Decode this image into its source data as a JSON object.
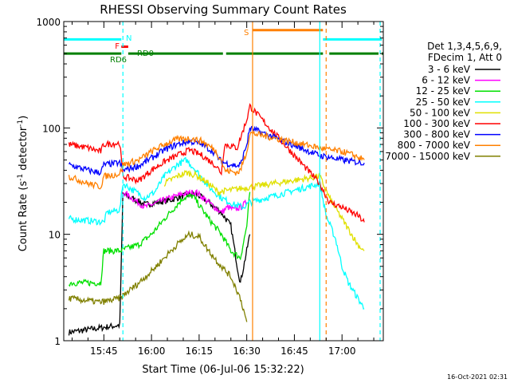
{
  "chart_data": {
    "type": "line",
    "title": "RHESSI Observing Summary Count Rates",
    "xlabel": "Start Time (06-Jul-06 15:32:22)",
    "ylabel": "Count Rate (s",
    "ylabel_exp1": "-1",
    "ylabel_mid": " detector",
    "ylabel_exp2": "-1",
    "ylabel_end": ")",
    "yscale": "log",
    "ylim": [
      1,
      1000
    ],
    "xlim": [
      "15:32:22",
      "17:13:00"
    ],
    "x_ticks": [
      "15:45",
      "16:00",
      "16:15",
      "16:30",
      "16:45",
      "17:00"
    ],
    "y_ticks": [
      "1",
      "10",
      "100",
      "1000"
    ],
    "legend_position": "right",
    "legend_header": [
      "Det 1,3,4,5,6,9,",
      "FDecim 1, Att 0"
    ],
    "footer_timestamp": "16-Oct-2021 02:31",
    "series": [
      {
        "name": "3 - 6 keV",
        "color": "#000000",
        "x": [
          "15:34",
          "15:50",
          "15:51",
          "15:58",
          "16:02",
          "16:06",
          "16:10",
          "16:14",
          "16:18",
          "16:22",
          "16:25",
          "16:27",
          "16:28",
          "16:31"
        ],
        "y": [
          1.2,
          1.4,
          24,
          19,
          20,
          21,
          23,
          24,
          20,
          16,
          12,
          5,
          3.5,
          10
        ]
      },
      {
        "name": "6 - 12 keV",
        "color": "#ff00ff",
        "x": [
          "15:51",
          "15:58",
          "16:02",
          "16:06",
          "16:10",
          "16:14",
          "16:18",
          "16:22",
          "16:24",
          "16:26",
          "16:28",
          "16:30"
        ],
        "y": [
          25,
          18,
          20,
          22,
          24,
          25,
          20,
          16,
          18,
          17,
          18,
          20
        ]
      },
      {
        "name": "12 - 25 keV",
        "color": "#00e000",
        "x": [
          "15:34",
          "15:44",
          "15:45",
          "15:50",
          "15:56",
          "16:00",
          "16:05",
          "16:10",
          "16:13",
          "16:18",
          "16:22",
          "16:25",
          "16:28",
          "16:30",
          "16:31"
        ],
        "y": [
          3.5,
          3.5,
          7,
          7,
          8,
          10,
          15,
          22,
          23,
          14,
          10,
          7,
          6,
          12,
          25
        ]
      },
      {
        "name": "25 - 50 keV",
        "color": "#00ffff",
        "x": [
          "15:34",
          "15:45",
          "15:46",
          "15:50",
          "15:51",
          "15:58",
          "16:01",
          "16:04",
          "16:08",
          "16:11",
          "16:14",
          "16:18",
          "16:22",
          "16:26",
          "16:29",
          "16:31",
          "16:53",
          "16:55",
          "16:58",
          "17:00",
          "17:02",
          "17:05",
          "17:07"
        ],
        "y": [
          14,
          13,
          16,
          17,
          30,
          22,
          25,
          35,
          45,
          50,
          40,
          28,
          22,
          19,
          18,
          20,
          30,
          15,
          9,
          5,
          3.5,
          2.5,
          2
        ]
      },
      {
        "name": "50 - 100 keV",
        "color": "#e0e000",
        "x": [
          "16:04",
          "16:08",
          "16:11",
          "16:14",
          "16:18",
          "16:21",
          "16:53",
          "16:56",
          "17:00",
          "17:03",
          "17:05",
          "17:07"
        ],
        "y": [
          30,
          35,
          38,
          36,
          30,
          25,
          35,
          22,
          14,
          10,
          8,
          7
        ]
      },
      {
        "name": "100 - 300 keV",
        "color": "#ff0000",
        "x": [
          "15:34",
          "15:40",
          "15:44",
          "15:45",
          "15:50",
          "15:51",
          "15:56",
          "16:00",
          "16:04",
          "16:08",
          "16:12",
          "16:16",
          "16:20",
          "16:22",
          "16:23",
          "16:27",
          "16:28",
          "16:30",
          "16:31",
          "16:53",
          "16:56",
          "17:00",
          "17:03",
          "17:05",
          "17:07"
        ],
        "y": [
          70,
          65,
          60,
          70,
          72,
          35,
          32,
          40,
          48,
          55,
          62,
          55,
          45,
          38,
          70,
          65,
          80,
          120,
          160,
          30,
          20,
          18,
          16,
          15,
          13
        ]
      },
      {
        "name": "300 - 800 keV",
        "color": "#0000ff",
        "x": [
          "15:34",
          "15:40",
          "15:44",
          "15:45",
          "15:50",
          "15:51",
          "15:56",
          "16:00",
          "16:04",
          "16:08",
          "16:12",
          "16:16",
          "16:20",
          "16:22",
          "16:23",
          "16:27",
          "16:28",
          "16:30",
          "16:31",
          "16:53",
          "16:56",
          "17:00",
          "17:04",
          "17:07"
        ],
        "y": [
          45,
          40,
          38,
          45,
          47,
          40,
          44,
          52,
          62,
          70,
          75,
          70,
          58,
          48,
          47,
          44,
          45,
          70,
          100,
          55,
          53,
          50,
          48,
          47
        ]
      },
      {
        "name": "800 - 7000 keV",
        "color": "#ff8000",
        "x": [
          "15:34",
          "15:40",
          "15:44",
          "15:45",
          "15:50",
          "15:51",
          "15:56",
          "16:00",
          "16:04",
          "16:08",
          "16:12",
          "16:16",
          "16:20",
          "16:22",
          "16:23",
          "16:27",
          "16:28",
          "16:30",
          "16:31",
          "16:53",
          "16:56",
          "17:00",
          "17:04",
          "17:07"
        ],
        "y": [
          35,
          30,
          28,
          35,
          37,
          45,
          50,
          60,
          70,
          78,
          80,
          75,
          62,
          50,
          40,
          38,
          40,
          60,
          90,
          65,
          62,
          60,
          55,
          50
        ]
      },
      {
        "name": "7000 - 15000 keV",
        "color": "#808000",
        "x": [
          "15:34",
          "15:44",
          "15:50",
          "15:56",
          "16:00",
          "16:04",
          "16:08",
          "16:12",
          "16:15",
          "16:18",
          "16:22",
          "16:25",
          "16:28",
          "16:30"
        ],
        "y": [
          2.5,
          2.3,
          2.5,
          3.5,
          4.5,
          6,
          8,
          10,
          9.5,
          7,
          5,
          4,
          2.5,
          1.5
        ]
      }
    ],
    "annotations": [
      {
        "label": "N",
        "color": "#00ffff"
      },
      {
        "label": "F",
        "color": "#ff0000"
      },
      {
        "label": "RD6",
        "color": "#008000"
      },
      {
        "label": "RD0",
        "color": "#008000"
      },
      {
        "label": "S",
        "color": "#ff8000"
      }
    ],
    "flag_bars": [
      {
        "name": "N",
        "color": "#00ffff",
        "y": 680,
        "segments": [
          [
            "15:32:22",
            "15:50:30"
          ],
          [
            "16:54:00",
            "17:12:30"
          ]
        ]
      },
      {
        "name": "F",
        "color": "#ff0000",
        "y": 580,
        "segments": [
          [
            "15:50:30",
            "15:52:40"
          ]
        ]
      },
      {
        "name": "S",
        "color": "#ff8000",
        "y": 830,
        "segments": [
          [
            "16:31:50",
            "16:54:00"
          ]
        ]
      },
      {
        "name": "RD",
        "color": "#008000",
        "y": 500,
        "segments": [
          [
            "15:32:22",
            "15:50:30"
          ],
          [
            "15:52:40",
            "16:22:30"
          ],
          [
            "16:23:30",
            "16:54:00"
          ],
          [
            "16:56:00",
            "17:11:30"
          ],
          [
            "17:12:30",
            "17:13:00"
          ]
        ]
      }
    ],
    "vlines": [
      {
        "t": "15:51:00",
        "color": "#00ffff",
        "dashed": true
      },
      {
        "t": "16:31:50",
        "color": "#ff8000",
        "dashed": false
      },
      {
        "t": "16:53:00",
        "color": "#00ffff",
        "dashed": false
      },
      {
        "t": "16:55:00",
        "color": "#ff8000",
        "dashed": true
      },
      {
        "t": "17:12:00",
        "color": "#00ffff",
        "dashed": true
      }
    ]
  }
}
